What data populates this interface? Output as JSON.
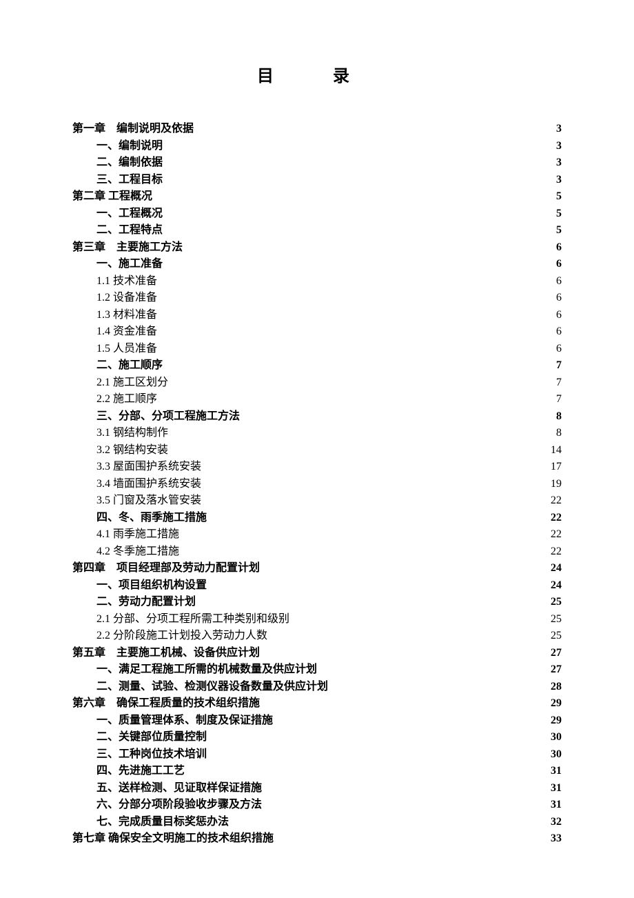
{
  "title": "目  录",
  "title_fontsize": 24,
  "body_fontsize": 16,
  "line_height": 24.5,
  "indent_level_1": 35,
  "indent_level_2": 35,
  "background_color": "#ffffff",
  "text_color": "#000000",
  "font_family": "SimSun",
  "entries": [
    {
      "level": 0,
      "label": "第一章　编制说明及依据",
      "page": "3",
      "bold": true
    },
    {
      "level": 1,
      "label": "一、编制说明",
      "page": "3",
      "bold": true
    },
    {
      "level": 1,
      "label": "二、编制依据",
      "page": "3",
      "bold": true
    },
    {
      "level": 1,
      "label": "三、工程目标",
      "page": "3",
      "bold": true
    },
    {
      "level": 0,
      "label": "第二章 工程概况",
      "page": "5",
      "bold": true
    },
    {
      "level": 1,
      "label": "一、工程概况",
      "page": "5",
      "bold": true
    },
    {
      "level": 1,
      "label": "二、工程特点",
      "page": "5",
      "bold": true
    },
    {
      "level": 0,
      "label": "第三章　主要施工方法",
      "page": "6",
      "bold": true
    },
    {
      "level": 1,
      "label": "一、施工准备",
      "page": "6",
      "bold": true
    },
    {
      "level": 2,
      "label": "1.1 技术准备",
      "page": "6",
      "bold": false
    },
    {
      "level": 2,
      "label": "1.2 设备准备",
      "page": "6",
      "bold": false
    },
    {
      "level": 2,
      "label": "1.3 材料准备",
      "page": "6",
      "bold": false
    },
    {
      "level": 2,
      "label": "1.4 资金准备",
      "page": "6",
      "bold": false
    },
    {
      "level": 2,
      "label": "1.5 人员准备",
      "page": "6",
      "bold": false
    },
    {
      "level": 1,
      "label": "二、施工顺序",
      "page": "7",
      "bold": true
    },
    {
      "level": 2,
      "label": "2.1 施工区划分",
      "page": "7",
      "bold": false
    },
    {
      "level": 2,
      "label": "2.2 施工顺序",
      "page": "7",
      "bold": false
    },
    {
      "level": 1,
      "label": "三、分部、分项工程施工方法",
      "page": "8",
      "bold": true
    },
    {
      "level": 2,
      "label": "3.1 钢结构制作",
      "page": "8",
      "bold": false
    },
    {
      "level": 2,
      "label": "3.2 钢结构安装",
      "page": "14",
      "bold": false
    },
    {
      "level": 2,
      "label": "3.3 屋面围护系统安装",
      "page": "17",
      "bold": false
    },
    {
      "level": 2,
      "label": "3.4 墙面围护系统安装",
      "page": "19",
      "bold": false
    },
    {
      "level": 2,
      "label": "3.5 门窗及落水管安装",
      "page": "22",
      "bold": false
    },
    {
      "level": 1,
      "label": "四、冬、雨季施工措施",
      "page": "22",
      "bold": true
    },
    {
      "level": 2,
      "label": "4.1 雨季施工措施",
      "page": "22",
      "bold": false
    },
    {
      "level": 2,
      "label": "4.2 冬季施工措施",
      "page": "22",
      "bold": false
    },
    {
      "level": 0,
      "label": "第四章　项目经理部及劳动力配置计划",
      "page": "24",
      "bold": true
    },
    {
      "level": 1,
      "label": "一、项目组织机构设置",
      "page": "24",
      "bold": true
    },
    {
      "level": 1,
      "label": "二、劳动力配置计划",
      "page": "25",
      "bold": true
    },
    {
      "level": 2,
      "label": "2.1 分部、分项工程所需工种类别和级别",
      "page": "25",
      "bold": false
    },
    {
      "level": 2,
      "label": "2.2 分阶段施工计划投入劳动力人数",
      "page": "25",
      "bold": false
    },
    {
      "level": 0,
      "label": "第五章　主要施工机械、设备供应计划",
      "page": "27",
      "bold": true
    },
    {
      "level": 1,
      "label": "一、满足工程施工所需的机械数量及供应计划",
      "page": "27",
      "bold": true
    },
    {
      "level": 1,
      "label": "二、测量、试验、检测仪器设备数量及供应计划",
      "page": "28",
      "bold": true
    },
    {
      "level": 0,
      "label": "第六章　确保工程质量的技术组织措施",
      "page": "29",
      "bold": true
    },
    {
      "level": 1,
      "label": "一、质量管理体系、制度及保证措施",
      "page": "29",
      "bold": true
    },
    {
      "level": 1,
      "label": "二、关键部位质量控制",
      "page": "30",
      "bold": true
    },
    {
      "level": 1,
      "label": "三、工种岗位技术培训",
      "page": "30",
      "bold": true
    },
    {
      "level": 1,
      "label": "四、先进施工工艺",
      "page": "31",
      "bold": true
    },
    {
      "level": 1,
      "label": "五、送样检测、见证取样保证措施",
      "page": "31",
      "bold": true
    },
    {
      "level": 1,
      "label": "六、分部分项阶段验收步骤及方法",
      "page": "31",
      "bold": true
    },
    {
      "level": 1,
      "label": "七、完成质量目标奖惩办法",
      "page": "32",
      "bold": true
    },
    {
      "level": 0,
      "label": "第七章 确保安全文明施工的技术组织措施",
      "page": "33",
      "bold": true
    }
  ]
}
